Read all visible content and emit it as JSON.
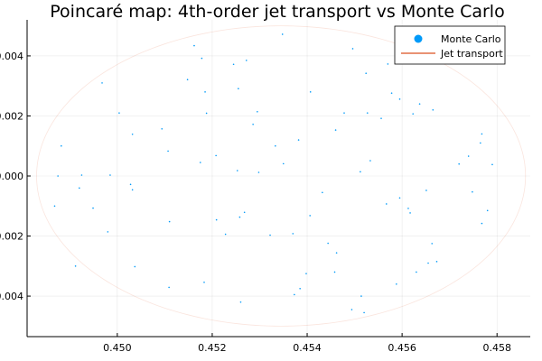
{
  "chart_data": {
    "type": "scatter",
    "title": "Poincaré map: 4th-order jet transport vs Monte Carlo",
    "xlabel": "",
    "ylabel": "",
    "xlim": [
      0.4481,
      0.4587
    ],
    "ylim": [
      -0.00535,
      0.0052
    ],
    "xticks": [
      0.45,
      0.452,
      0.454,
      0.456,
      0.458
    ],
    "xtick_labels": [
      "0.450",
      "0.452",
      "0.454",
      "0.456",
      "0.458"
    ],
    "yticks": [
      -0.004,
      -0.002,
      0.0,
      0.002,
      0.004
    ],
    "ytick_labels": [
      "-0.004",
      "-0.002",
      "0.000",
      "0.002",
      "0.004"
    ],
    "grid": true,
    "legend": {
      "position": "top-right",
      "entries": [
        "Monte Carlo",
        "Jet transport"
      ]
    },
    "series": [
      {
        "name": "Monte Carlo",
        "kind": "scatter",
        "color": "#009af9",
        "points": [
          [
            0.45162,
            0.00434
          ],
          [
            0.45245,
            0.00372
          ],
          [
            0.45348,
            0.00472
          ],
          [
            0.45496,
            0.00424
          ],
          [
            0.45178,
            0.00392
          ],
          [
            0.45185,
            0.0028
          ],
          [
            0.45255,
            0.00291
          ],
          [
            0.45148,
            0.00321
          ],
          [
            0.45272,
            0.00385
          ],
          [
            0.45295,
            0.00214
          ],
          [
            0.45407,
            0.0028
          ],
          [
            0.45524,
            0.00342
          ],
          [
            0.4557,
            0.00373
          ],
          [
            0.45578,
            0.00276
          ],
          [
            0.45595,
            0.00256
          ],
          [
            0.45623,
            0.00207
          ],
          [
            0.45637,
            0.0024
          ],
          [
            0.45665,
            0.0022
          ],
          [
            0.45527,
            0.0021
          ],
          [
            0.45556,
            0.00192
          ],
          [
            0.45478,
            0.0021
          ],
          [
            0.4546,
            0.00153
          ],
          [
            0.45382,
            0.0012
          ],
          [
            0.45286,
            0.00172
          ],
          [
            0.45188,
            0.00209
          ],
          [
            0.45094,
            0.00157
          ],
          [
            0.45004,
            0.0021
          ],
          [
            0.45032,
            0.00139
          ],
          [
            0.44968,
            0.0031
          ],
          [
            0.44882,
            0.001
          ],
          [
            0.44875,
            0.0
          ],
          [
            0.4492,
            -0.0004
          ],
          [
            0.44925,
            3e-05
          ],
          [
            0.44985,
            3e-05
          ],
          [
            0.45028,
            -0.00028
          ],
          [
            0.45032,
            -0.00046
          ],
          [
            0.45107,
            0.00083
          ],
          [
            0.45175,
            0.00045
          ],
          [
            0.45208,
            0.00068
          ],
          [
            0.45253,
            0.00018
          ],
          [
            0.45298,
            0.00012
          ],
          [
            0.45333,
            0.001
          ],
          [
            0.4535,
            0.00041
          ],
          [
            0.45432,
            -0.00055
          ],
          [
            0.45512,
            0.00014
          ],
          [
            0.45533,
            0.00051
          ],
          [
            0.45567,
            -0.00093
          ],
          [
            0.45595,
            -0.00073
          ],
          [
            0.45617,
            -0.00123
          ],
          [
            0.45651,
            -0.00048
          ],
          [
            0.4572,
            0.0004
          ],
          [
            0.4574,
            0.00066
          ],
          [
            0.45748,
            -0.00053
          ],
          [
            0.45765,
            0.0011
          ],
          [
            0.45768,
            0.0014
          ],
          [
            0.4579,
            0.00038
          ],
          [
            0.4578,
            -0.00115
          ],
          [
            0.45768,
            -0.00158
          ],
          [
            0.44868,
            -0.001
          ],
          [
            0.44949,
            -0.00107
          ],
          [
            0.4498,
            -0.00186
          ],
          [
            0.4511,
            -0.00152
          ],
          [
            0.45209,
            -0.00146
          ],
          [
            0.45228,
            -0.00194
          ],
          [
            0.45258,
            -0.00137
          ],
          [
            0.45268,
            -0.00121
          ],
          [
            0.45322,
            -0.00197
          ],
          [
            0.4537,
            -0.00192
          ],
          [
            0.45406,
            -0.00132
          ],
          [
            0.45444,
            -0.00224
          ],
          [
            0.45462,
            -0.00256
          ],
          [
            0.45613,
            -0.00108
          ],
          [
            0.45663,
            -0.00225
          ],
          [
            0.45673,
            -0.00285
          ],
          [
            0.44912,
            -0.003
          ],
          [
            0.45037,
            -0.00302
          ],
          [
            0.45109,
            -0.00371
          ],
          [
            0.45183,
            -0.00354
          ],
          [
            0.4526,
            -0.0042
          ],
          [
            0.45373,
            -0.00395
          ],
          [
            0.45385,
            -0.00375
          ],
          [
            0.45398,
            -0.00325
          ],
          [
            0.45458,
            -0.0032
          ],
          [
            0.45494,
            -0.00445
          ],
          [
            0.45514,
            -0.004
          ],
          [
            0.4552,
            -0.00455
          ],
          [
            0.45588,
            -0.0036
          ],
          [
            0.4563,
            -0.0032
          ],
          [
            0.45655,
            -0.0029
          ]
        ]
      },
      {
        "name": "Jet transport",
        "kind": "line",
        "color": "#e26f46",
        "shape": "ellipse",
        "center": [
          0.45345,
          0.0
        ],
        "semi_axes": [
          0.00515,
          0.005
        ]
      }
    ]
  }
}
